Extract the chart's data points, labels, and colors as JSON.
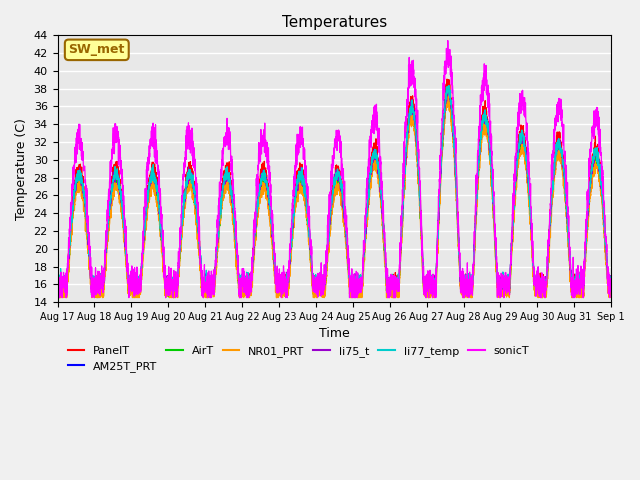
{
  "title": "Temperatures",
  "xlabel": "Time",
  "ylabel": "Temperature (C)",
  "ylim": [
    14,
    44
  ],
  "yticks": [
    14,
    16,
    18,
    20,
    22,
    24,
    26,
    28,
    30,
    32,
    34,
    36,
    38,
    40,
    42,
    44
  ],
  "series": {
    "PanelT": {
      "color": "#ff0000"
    },
    "AM25T_PRT": {
      "color": "#0000ff"
    },
    "AirT": {
      "color": "#00cc00"
    },
    "NR01_PRT": {
      "color": "#ff9900"
    },
    "li75_t": {
      "color": "#9900cc"
    },
    "li77_temp": {
      "color": "#00cccc"
    },
    "sonicT": {
      "color": "#ff00ff"
    }
  },
  "legend_label": "SW_met",
  "legend_bg": "#ffff99",
  "legend_border": "#996600",
  "plot_bg": "#e8e8e8",
  "grid_color": "#ffffff",
  "n_points": 3600
}
